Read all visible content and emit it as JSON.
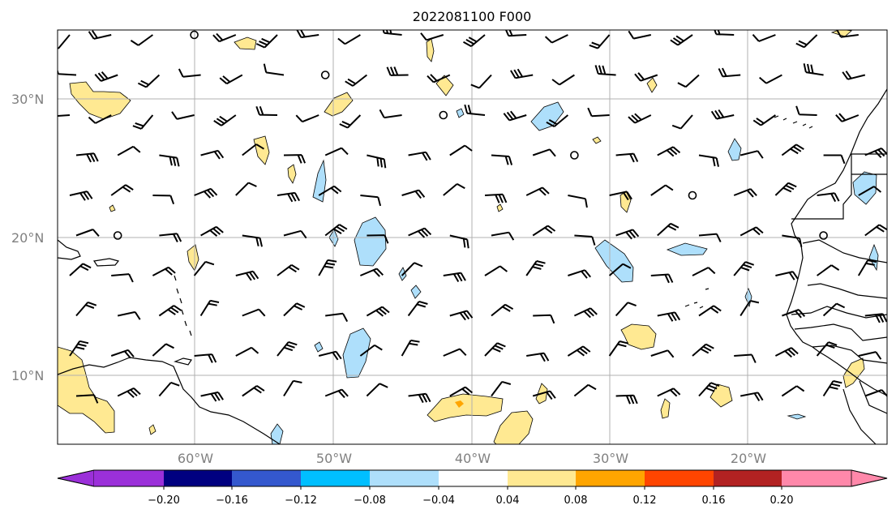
{
  "title": "2022081100 F000",
  "map": {
    "lat_labels": [
      "30°N",
      "20°N",
      "10°N"
    ],
    "lon_labels": [
      "60°W",
      "50°W",
      "40°W",
      "30°W",
      "20°W"
    ],
    "lat_values": [
      30,
      20,
      10
    ],
    "lon_values": [
      -60,
      -50,
      -40,
      -30,
      -20
    ],
    "extent": {
      "lon_min": -70,
      "lon_max": -10,
      "lat_min": 5,
      "lat_max": 35
    },
    "gridlines": true,
    "feature_colors": {
      "positive_fill": "#FFE992",
      "negative_fill": "#AEDFFB",
      "max_fill": "#FFA500",
      "contour": "#000000",
      "coastline": "#000000"
    }
  },
  "colorbar": {
    "tick_labels": [
      "−0.20",
      "−0.16",
      "−0.12",
      "−0.08",
      "−0.04",
      "0.04",
      "0.08",
      "0.12",
      "0.16",
      "0.20"
    ],
    "bins": [
      {
        "range": "< -0.20",
        "color": "#9B30D9"
      },
      {
        "range": "-0.20 to -0.16",
        "color": "#000080"
      },
      {
        "range": "-0.16 to -0.12",
        "color": "#3458CE"
      },
      {
        "range": "-0.12 to -0.08",
        "color": "#00BFFF"
      },
      {
        "range": "-0.08 to -0.04",
        "color": "#AEDFFB"
      },
      {
        "range": "-0.04 to 0.04",
        "color": "#FFFFFF"
      },
      {
        "range": "0.04 to 0.08",
        "color": "#FFE992"
      },
      {
        "range": "0.08 to 0.12",
        "color": "#FFA500"
      },
      {
        "range": "0.12 to 0.16",
        "color": "#FF4500"
      },
      {
        "range": "0.16 to 0.20",
        "color": "#B22222"
      },
      {
        "range": "> 0.20",
        "color": "#FF88AA"
      }
    ]
  }
}
